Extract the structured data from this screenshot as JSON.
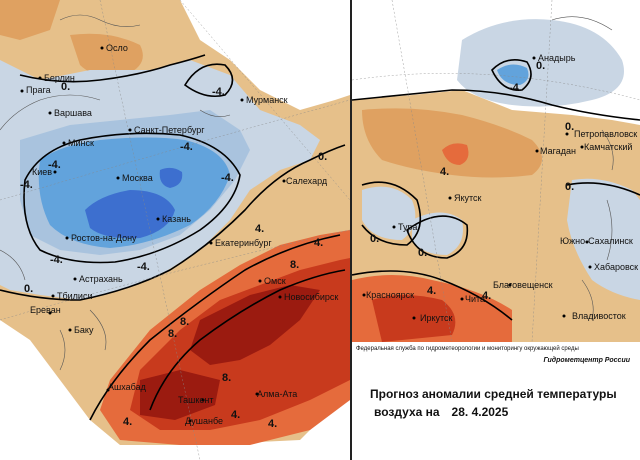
{
  "colors": {
    "anom_pos_0_4": "#e6c08a",
    "anom_pos_4_6": "#dfa161",
    "anom_pos_6_8": "#e56b3c",
    "anom_pos_8_10": "#c83a1d",
    "anom_pos_10": "#9b1b10",
    "anom_neg_0_2": "#c9d6e4",
    "anom_neg_2_4": "#a9c3de",
    "anom_neg_4_6": "#62a3dc",
    "anom_neg_6": "#3d6fcf"
  },
  "west_cities": [
    {
      "name": "Осло"
    },
    {
      "name": "Берлин"
    },
    {
      "name": "Прага"
    },
    {
      "name": "Варшава"
    },
    {
      "name": "Санкт-Петербург"
    },
    {
      "name": "Мурманск"
    },
    {
      "name": "Минск"
    },
    {
      "name": "Киев"
    },
    {
      "name": "Москва"
    },
    {
      "name": "Казань"
    },
    {
      "name": "Ростов-на-Дону"
    },
    {
      "name": "Салехард"
    },
    {
      "name": "Екатеринбург"
    },
    {
      "name": "Астрахань"
    },
    {
      "name": "Тбилиси"
    },
    {
      "name": "Ереван"
    },
    {
      "name": "Баку"
    },
    {
      "name": "Омск"
    },
    {
      "name": "Новосибирск"
    },
    {
      "name": "Ашхабад"
    },
    {
      "name": "Ташкент"
    },
    {
      "name": "Алма-Ата"
    },
    {
      "name": "Душанбе"
    }
  ],
  "east_cities": [
    {
      "name": "Анадырь"
    },
    {
      "name": "Петропавловск"
    },
    {
      "name": "Камчатский"
    },
    {
      "name": "Магадан"
    },
    {
      "name": "Якутск"
    },
    {
      "name": "Тура"
    },
    {
      "name": "Южно-Сахалинск"
    },
    {
      "name": "Хабаровск"
    },
    {
      "name": "Благовещенск"
    },
    {
      "name": "Красноярск"
    },
    {
      "name": "Чита"
    },
    {
      "name": "Иркутск"
    },
    {
      "name": "Владивосток"
    }
  ],
  "isoline_labels": {
    "zero": "0.",
    "minus4": "-4.",
    "plus4": "4.",
    "plus8": "8."
  },
  "footer": {
    "agency": "Федеральная служба по гидрометеорологии и мониторингу окружающей среды",
    "brand": "Гидрометцентр России",
    "title_line1": "Прогноз аномалии средней температуры",
    "title_line2": "воздуха на",
    "date": "28. 4.2025"
  }
}
